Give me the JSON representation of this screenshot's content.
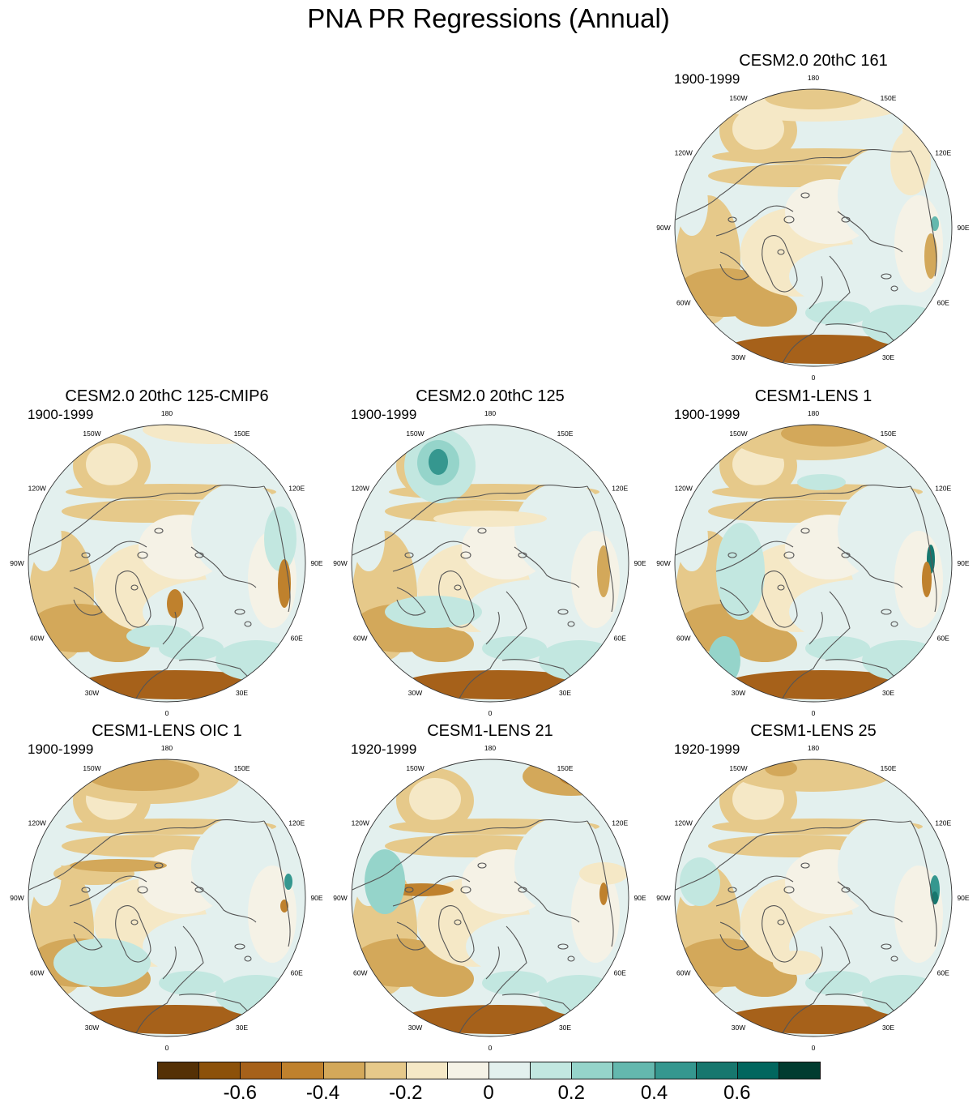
{
  "figure": {
    "title": "PNA PR Regressions (Annual)",
    "lon_labels": [
      "180",
      "150E",
      "120E",
      "90E",
      "60E",
      "30E",
      "0",
      "30W",
      "60W",
      "90W",
      "120W",
      "150W"
    ]
  },
  "panels": [
    {
      "id": "p1",
      "title": "CESM2.0 20thC 161",
      "period": "1900-1999"
    },
    {
      "id": "p2",
      "title": "CESM2.0 20thC 125-CMIP6",
      "period": "1900-1999"
    },
    {
      "id": "p3",
      "title": "CESM2.0 20thC 125",
      "period": "1900-1999"
    },
    {
      "id": "p4",
      "title": "CESM1-LENS 1",
      "period": "1900-1999"
    },
    {
      "id": "p5",
      "title": "CESM1-LENS OIC 1",
      "period": "1900-1999"
    },
    {
      "id": "p6",
      "title": "CESM1-LENS 21",
      "period": "1920-1999"
    },
    {
      "id": "p7",
      "title": "CESM1-LENS 25",
      "period": "1920-1999"
    }
  ],
  "colorbar": {
    "colors": [
      "#543005",
      "#8c510a",
      "#a6611a",
      "#bf812d",
      "#d3a85a",
      "#e6c98a",
      "#f5e8c6",
      "#f5f2e6",
      "#e3f0ee",
      "#c2e7e0",
      "#95d4ca",
      "#64b8ae",
      "#35978f",
      "#17776e",
      "#01665e",
      "#003c30"
    ],
    "tick_labels": [
      "-0.6",
      "-0.4",
      "-0.2",
      "0",
      "0.2",
      "0.4",
      "0.6"
    ]
  }
}
